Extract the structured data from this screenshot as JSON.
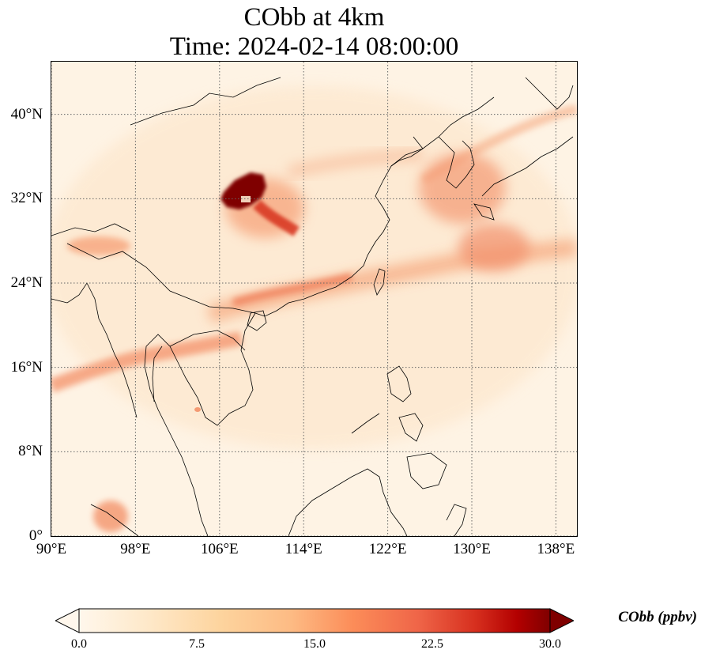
{
  "title_line1": "CObb at 4km",
  "title_line2": "Time: 2024-02-14 08:00:00",
  "map": {
    "lon_range": [
      90,
      140
    ],
    "lat_range": [
      0,
      45
    ],
    "lat_ticks": [
      {
        "value": 40,
        "label": "40°N"
      },
      {
        "value": 32,
        "label": "32°N"
      },
      {
        "value": 24,
        "label": "24°N"
      },
      {
        "value": 16,
        "label": "16°N"
      },
      {
        "value": 8,
        "label": "8°N"
      },
      {
        "value": 0,
        "label": "0°"
      }
    ],
    "lon_ticks": [
      {
        "value": 90,
        "label": "90°E"
      },
      {
        "value": 98,
        "label": "98°E"
      },
      {
        "value": 106,
        "label": "106°E"
      },
      {
        "value": 114,
        "label": "114°E"
      },
      {
        "value": 122,
        "label": "122°E"
      },
      {
        "value": 130,
        "label": "130°E"
      },
      {
        "value": 138,
        "label": "138°E"
      }
    ],
    "gridlines": true,
    "colormap": "OrRd",
    "colors": {
      "background": "#fef3e4",
      "low": "#fde3c4",
      "mid": "#f8a56e",
      "high": "#e34a33",
      "max": "#7f0000"
    },
    "plumes": [
      {
        "name": "central-china-max",
        "lon": 107.5,
        "lat": 32.5,
        "value": 30
      },
      {
        "name": "sichuan-tail",
        "lon": 111.5,
        "lat": 29.5,
        "value": 24
      },
      {
        "name": "south-china-band",
        "lon": 114,
        "lat": 23,
        "value": 14
      },
      {
        "name": "myanmar-band",
        "lon": 96,
        "lat": 16.5,
        "value": 13
      },
      {
        "name": "japan-band",
        "lon": 131,
        "lat": 31,
        "value": 11
      },
      {
        "name": "sumatra-spot",
        "lon": 95,
        "lat": 1.5,
        "value": 10
      }
    ]
  },
  "colorbar": {
    "label": "CObb (ppbv)",
    "min": 0,
    "max": 30,
    "extend": "both",
    "ticks": [
      "0.0",
      "7.5",
      "15.0",
      "22.5",
      "30.0"
    ]
  }
}
